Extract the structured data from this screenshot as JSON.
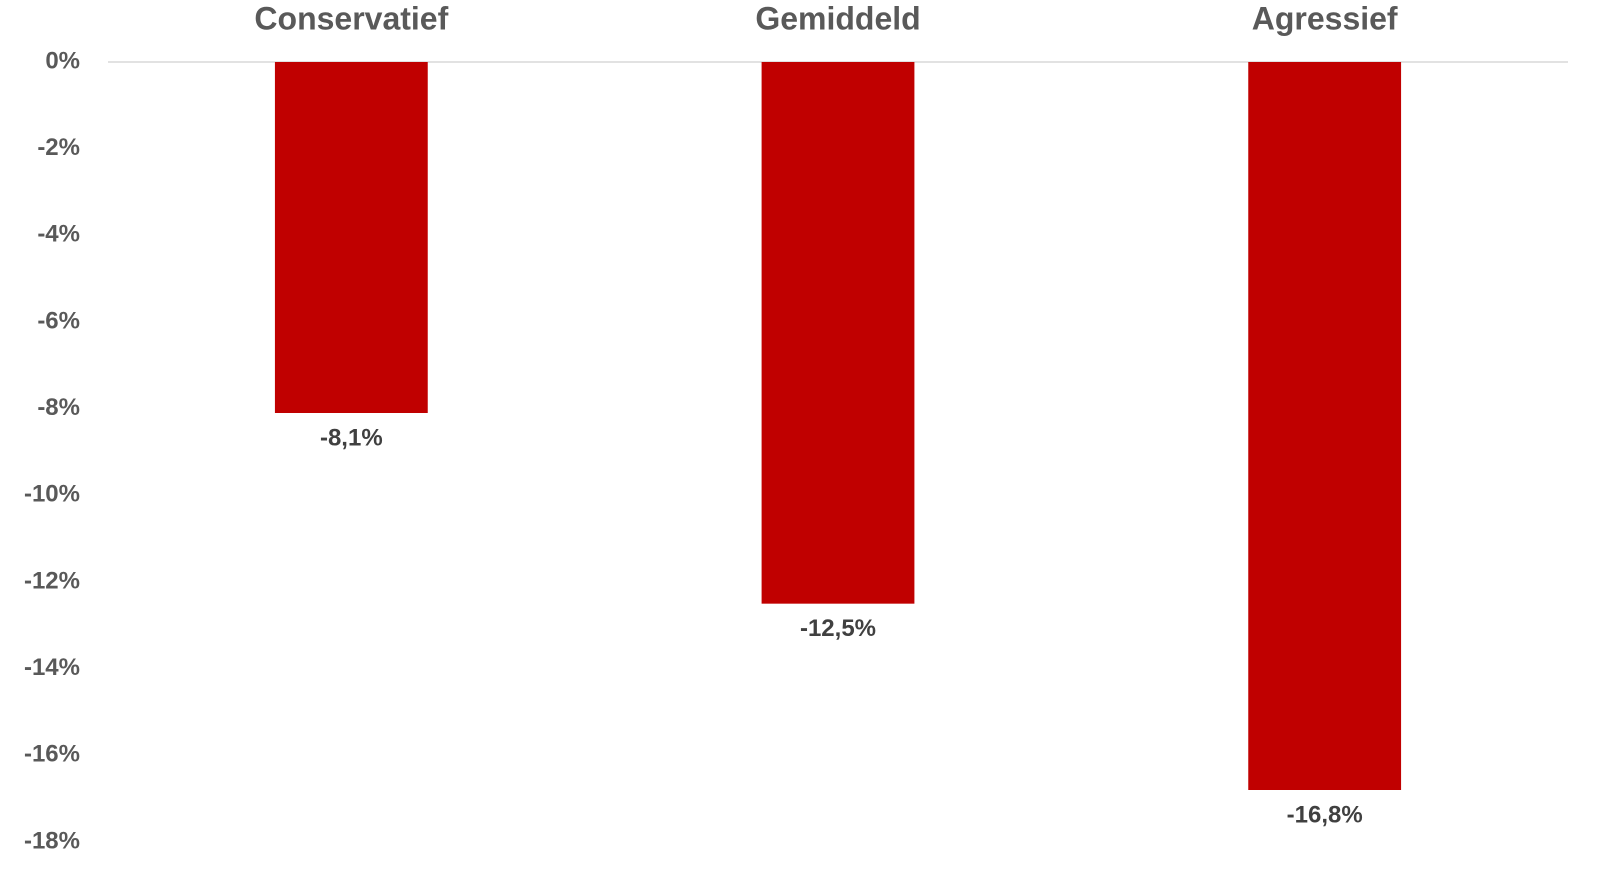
{
  "chart_data": {
    "type": "bar",
    "categories": [
      "Conservatief",
      "Gemiddeld",
      "Agressief"
    ],
    "values": [
      -8.1,
      -12.5,
      -16.8
    ],
    "value_labels": [
      "-8,1%",
      "-12,5%",
      "-16,8%"
    ],
    "color": "#c00000",
    "ylim": [
      -18,
      0
    ],
    "yticks": [
      {
        "value": 0,
        "label": "0%"
      },
      {
        "value": -2,
        "label": "-2%"
      },
      {
        "value": -4,
        "label": "-4%"
      },
      {
        "value": -6,
        "label": "-6%"
      },
      {
        "value": -8,
        "label": "-8%"
      },
      {
        "value": -10,
        "label": "-10%"
      },
      {
        "value": -12,
        "label": "-12%"
      },
      {
        "value": -14,
        "label": "-14%"
      },
      {
        "value": -16,
        "label": "-16%"
      },
      {
        "value": -18,
        "label": "-18%"
      }
    ],
    "grid": false
  }
}
